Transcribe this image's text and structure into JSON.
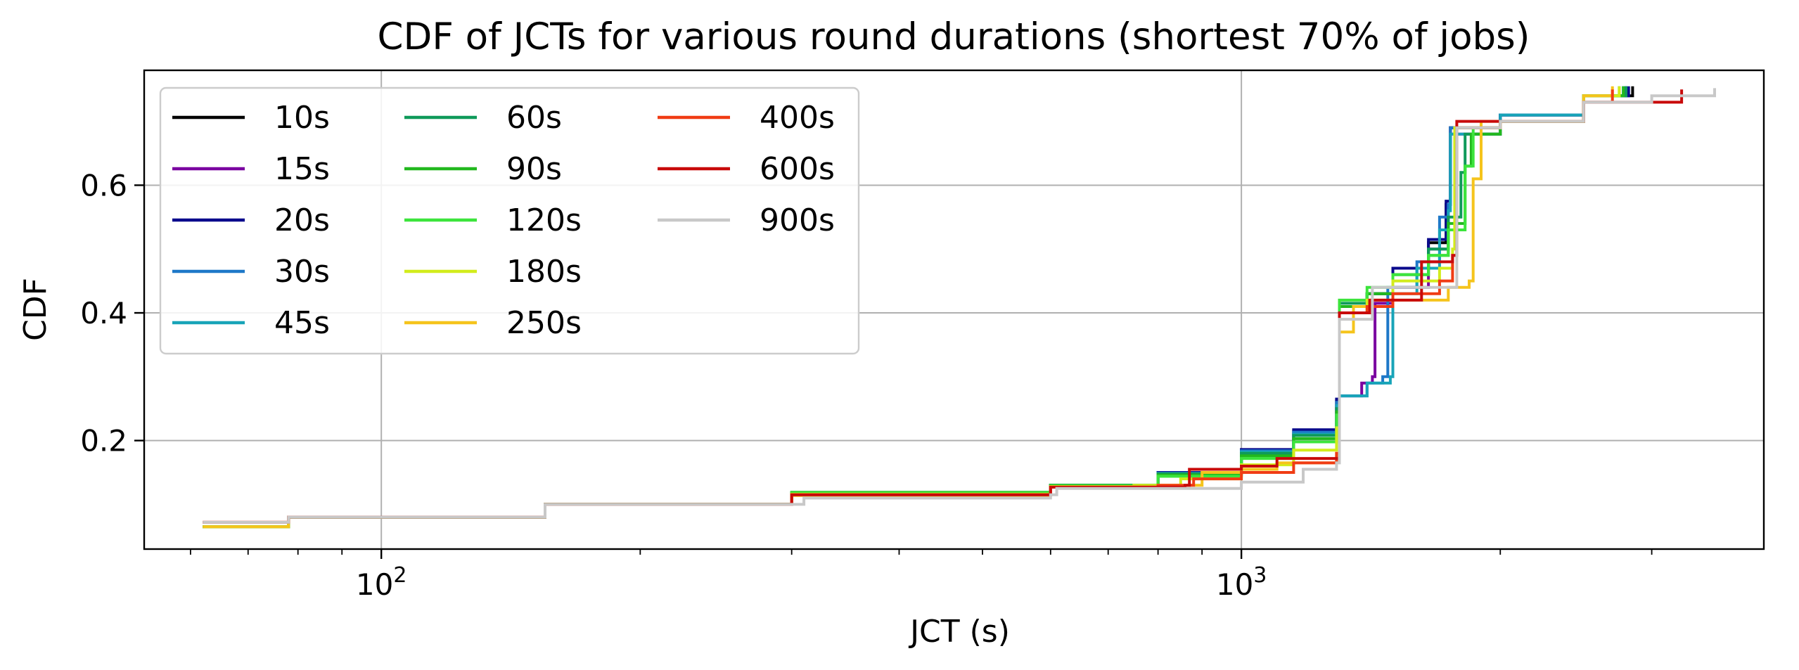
{
  "chart_data": {
    "type": "line",
    "title": "CDF of JCTs for various round durations (shortest 70% of jobs)",
    "xlabel": "JCT (s)",
    "ylabel": "CDF",
    "xscale": "log",
    "xlim": [
      53,
      4050
    ],
    "ylim": [
      0.03,
      0.78
    ],
    "x_major_ticks": [
      {
        "value": 100,
        "base": "10",
        "exp": "2"
      },
      {
        "value": 1000,
        "base": "10",
        "exp": "3"
      }
    ],
    "x_minor_ticks": [
      60,
      70,
      80,
      90,
      200,
      300,
      400,
      500,
      600,
      700,
      800,
      900,
      2000,
      3000
    ],
    "y_ticks": [
      {
        "value": 0.2,
        "label": "0.2"
      },
      {
        "value": 0.4,
        "label": "0.4"
      },
      {
        "value": 0.6,
        "label": "0.6"
      }
    ],
    "grid": true,
    "legend": {
      "placement": "upper-left",
      "columns": 3
    },
    "series": [
      {
        "name": "10s",
        "color": "#000000",
        "points": [
          [
            62,
            0.065
          ],
          [
            72,
            0.065
          ],
          [
            78,
            0.08
          ],
          [
            150,
            0.08
          ],
          [
            155,
            0.1
          ],
          [
            300,
            0.118
          ],
          [
            600,
            0.13
          ],
          [
            800,
            0.15
          ],
          [
            1000,
            0.185
          ],
          [
            1150,
            0.215
          ],
          [
            1290,
            0.262
          ],
          [
            1300,
            0.41
          ],
          [
            1400,
            0.43
          ],
          [
            1500,
            0.47
          ],
          [
            1650,
            0.51
          ],
          [
            1730,
            0.57
          ],
          [
            1750,
            0.69
          ],
          [
            2000,
            0.71
          ],
          [
            2500,
            0.74
          ],
          [
            2850,
            0.755
          ]
        ]
      },
      {
        "name": "15s",
        "color": "#7a00a0",
        "points": [
          [
            62,
            0.065
          ],
          [
            72,
            0.065
          ],
          [
            78,
            0.08
          ],
          [
            150,
            0.08
          ],
          [
            155,
            0.1
          ],
          [
            300,
            0.117
          ],
          [
            600,
            0.13
          ],
          [
            800,
            0.148
          ],
          [
            1000,
            0.182
          ],
          [
            1150,
            0.21
          ],
          [
            1290,
            0.255
          ],
          [
            1300,
            0.27
          ],
          [
            1380,
            0.29
          ],
          [
            1420,
            0.3
          ],
          [
            1430,
            0.415
          ],
          [
            1500,
            0.44
          ],
          [
            1650,
            0.5
          ],
          [
            1740,
            0.57
          ],
          [
            1750,
            0.68
          ],
          [
            2000,
            0.71
          ],
          [
            2500,
            0.74
          ],
          [
            2800,
            0.755
          ]
        ]
      },
      {
        "name": "20s",
        "color": "#0a0a8c",
        "points": [
          [
            62,
            0.065
          ],
          [
            72,
            0.065
          ],
          [
            78,
            0.08
          ],
          [
            150,
            0.08
          ],
          [
            155,
            0.1
          ],
          [
            300,
            0.118
          ],
          [
            600,
            0.13
          ],
          [
            800,
            0.15
          ],
          [
            1000,
            0.186
          ],
          [
            1150,
            0.217
          ],
          [
            1290,
            0.265
          ],
          [
            1300,
            0.41
          ],
          [
            1400,
            0.43
          ],
          [
            1500,
            0.47
          ],
          [
            1650,
            0.515
          ],
          [
            1730,
            0.575
          ],
          [
            1750,
            0.69
          ],
          [
            2000,
            0.71
          ],
          [
            2500,
            0.74
          ],
          [
            2820,
            0.755
          ]
        ]
      },
      {
        "name": "30s",
        "color": "#1e78c8",
        "points": [
          [
            62,
            0.065
          ],
          [
            72,
            0.065
          ],
          [
            78,
            0.08
          ],
          [
            150,
            0.08
          ],
          [
            155,
            0.1
          ],
          [
            300,
            0.118
          ],
          [
            600,
            0.13
          ],
          [
            800,
            0.149
          ],
          [
            1000,
            0.184
          ],
          [
            1150,
            0.213
          ],
          [
            1290,
            0.26
          ],
          [
            1300,
            0.27
          ],
          [
            1400,
            0.29
          ],
          [
            1460,
            0.3
          ],
          [
            1480,
            0.44
          ],
          [
            1600,
            0.48
          ],
          [
            1700,
            0.55
          ],
          [
            1740,
            0.57
          ],
          [
            1750,
            0.69
          ],
          [
            2000,
            0.71
          ],
          [
            2500,
            0.74
          ],
          [
            2800,
            0.755
          ]
        ]
      },
      {
        "name": "45s",
        "color": "#18a4b8",
        "points": [
          [
            62,
            0.065
          ],
          [
            72,
            0.065
          ],
          [
            78,
            0.08
          ],
          [
            150,
            0.08
          ],
          [
            155,
            0.1
          ],
          [
            300,
            0.117
          ],
          [
            600,
            0.13
          ],
          [
            800,
            0.148
          ],
          [
            1000,
            0.182
          ],
          [
            1150,
            0.21
          ],
          [
            1290,
            0.255
          ],
          [
            1300,
            0.27
          ],
          [
            1400,
            0.29
          ],
          [
            1490,
            0.3
          ],
          [
            1500,
            0.43
          ],
          [
            1600,
            0.47
          ],
          [
            1700,
            0.53
          ],
          [
            1740,
            0.56
          ],
          [
            1750,
            0.68
          ],
          [
            2000,
            0.71
          ],
          [
            2500,
            0.74
          ],
          [
            2780,
            0.755
          ]
        ]
      },
      {
        "name": "60s",
        "color": "#0f9a5a",
        "points": [
          [
            62,
            0.065
          ],
          [
            72,
            0.065
          ],
          [
            78,
            0.08
          ],
          [
            150,
            0.08
          ],
          [
            155,
            0.1
          ],
          [
            300,
            0.118
          ],
          [
            600,
            0.13
          ],
          [
            800,
            0.148
          ],
          [
            1000,
            0.18
          ],
          [
            1150,
            0.208
          ],
          [
            1290,
            0.25
          ],
          [
            1300,
            0.415
          ],
          [
            1400,
            0.43
          ],
          [
            1500,
            0.46
          ],
          [
            1650,
            0.5
          ],
          [
            1740,
            0.55
          ],
          [
            1800,
            0.62
          ],
          [
            1820,
            0.68
          ],
          [
            2000,
            0.7
          ],
          [
            2500,
            0.74
          ],
          [
            2800,
            0.755
          ]
        ]
      },
      {
        "name": "90s",
        "color": "#22b81e",
        "points": [
          [
            62,
            0.065
          ],
          [
            72,
            0.065
          ],
          [
            78,
            0.08
          ],
          [
            150,
            0.08
          ],
          [
            155,
            0.1
          ],
          [
            300,
            0.119
          ],
          [
            600,
            0.13
          ],
          [
            800,
            0.146
          ],
          [
            1000,
            0.176
          ],
          [
            1150,
            0.203
          ],
          [
            1290,
            0.245
          ],
          [
            1300,
            0.41
          ],
          [
            1400,
            0.43
          ],
          [
            1500,
            0.46
          ],
          [
            1650,
            0.49
          ],
          [
            1740,
            0.54
          ],
          [
            1820,
            0.63
          ],
          [
            1850,
            0.68
          ],
          [
            2000,
            0.7
          ],
          [
            2500,
            0.74
          ],
          [
            2780,
            0.755
          ]
        ]
      },
      {
        "name": "120s",
        "color": "#3ce43c",
        "points": [
          [
            62,
            0.065
          ],
          [
            72,
            0.065
          ],
          [
            78,
            0.08
          ],
          [
            150,
            0.08
          ],
          [
            155,
            0.1
          ],
          [
            300,
            0.118
          ],
          [
            600,
            0.129
          ],
          [
            800,
            0.144
          ],
          [
            1000,
            0.172
          ],
          [
            1150,
            0.198
          ],
          [
            1290,
            0.24
          ],
          [
            1300,
            0.42
          ],
          [
            1400,
            0.44
          ],
          [
            1500,
            0.46
          ],
          [
            1650,
            0.49
          ],
          [
            1740,
            0.53
          ],
          [
            1820,
            0.63
          ],
          [
            1860,
            0.69
          ],
          [
            2000,
            0.7
          ],
          [
            2500,
            0.74
          ],
          [
            2750,
            0.755
          ]
        ]
      },
      {
        "name": "180s",
        "color": "#d2ec1c",
        "points": [
          [
            62,
            0.065
          ],
          [
            72,
            0.065
          ],
          [
            78,
            0.08
          ],
          [
            150,
            0.08
          ],
          [
            155,
            0.1
          ],
          [
            300,
            0.116
          ],
          [
            600,
            0.128
          ],
          [
            750,
            0.13
          ],
          [
            850,
            0.14
          ],
          [
            1000,
            0.162
          ],
          [
            1150,
            0.185
          ],
          [
            1290,
            0.22
          ],
          [
            1300,
            0.4
          ],
          [
            1400,
            0.42
          ],
          [
            1500,
            0.45
          ],
          [
            1700,
            0.47
          ],
          [
            1760,
            0.5
          ],
          [
            1770,
            0.69
          ],
          [
            2000,
            0.7
          ],
          [
            2500,
            0.74
          ],
          [
            2750,
            0.755
          ]
        ]
      },
      {
        "name": "250s",
        "color": "#f5c41c",
        "points": [
          [
            62,
            0.065
          ],
          [
            72,
            0.065
          ],
          [
            78,
            0.08
          ],
          [
            150,
            0.08
          ],
          [
            155,
            0.1
          ],
          [
            300,
            0.114
          ],
          [
            600,
            0.127
          ],
          [
            800,
            0.13
          ],
          [
            900,
            0.15
          ],
          [
            1000,
            0.155
          ],
          [
            1100,
            0.165
          ],
          [
            1290,
            0.18
          ],
          [
            1300,
            0.37
          ],
          [
            1350,
            0.41
          ],
          [
            1500,
            0.42
          ],
          [
            1700,
            0.42
          ],
          [
            1740,
            0.44
          ],
          [
            1840,
            0.45
          ],
          [
            1860,
            0.61
          ],
          [
            1900,
            0.7
          ],
          [
            2500,
            0.74
          ],
          [
            2700,
            0.755
          ]
        ]
      },
      {
        "name": "400s",
        "color": "#f03c14",
        "points": [
          [
            62,
            0.072
          ],
          [
            72,
            0.072
          ],
          [
            78,
            0.08
          ],
          [
            150,
            0.08
          ],
          [
            155,
            0.1
          ],
          [
            300,
            0.115
          ],
          [
            600,
            0.127
          ],
          [
            800,
            0.13
          ],
          [
            880,
            0.14
          ],
          [
            1000,
            0.15
          ],
          [
            1150,
            0.165
          ],
          [
            1290,
            0.18
          ],
          [
            1300,
            0.4
          ],
          [
            1400,
            0.41
          ],
          [
            1500,
            0.43
          ],
          [
            1700,
            0.45
          ],
          [
            1760,
            0.49
          ],
          [
            1780,
            0.69
          ],
          [
            2000,
            0.7
          ],
          [
            2500,
            0.73
          ],
          [
            2700,
            0.75
          ]
        ]
      },
      {
        "name": "600s",
        "color": "#c80a0a",
        "points": [
          [
            62,
            0.072
          ],
          [
            72,
            0.072
          ],
          [
            78,
            0.08
          ],
          [
            150,
            0.08
          ],
          [
            155,
            0.1
          ],
          [
            300,
            0.115
          ],
          [
            600,
            0.127
          ],
          [
            860,
            0.13
          ],
          [
            870,
            0.155
          ],
          [
            1000,
            0.16
          ],
          [
            1100,
            0.172
          ],
          [
            1290,
            0.172
          ],
          [
            1300,
            0.4
          ],
          [
            1400,
            0.4
          ],
          [
            1410,
            0.42
          ],
          [
            1600,
            0.42
          ],
          [
            1620,
            0.48
          ],
          [
            1760,
            0.49
          ],
          [
            1780,
            0.7
          ],
          [
            2000,
            0.7
          ],
          [
            2500,
            0.73
          ],
          [
            3250,
            0.75
          ]
        ]
      },
      {
        "name": "900s",
        "color": "#c8c8c8",
        "points": [
          [
            62,
            0.072
          ],
          [
            72,
            0.072
          ],
          [
            78,
            0.08
          ],
          [
            150,
            0.08
          ],
          [
            155,
            0.1
          ],
          [
            300,
            0.1
          ],
          [
            310,
            0.11
          ],
          [
            600,
            0.115
          ],
          [
            610,
            0.125
          ],
          [
            1000,
            0.135
          ],
          [
            1170,
            0.135
          ],
          [
            1180,
            0.155
          ],
          [
            1290,
            0.165
          ],
          [
            1300,
            0.39
          ],
          [
            1400,
            0.39
          ],
          [
            1420,
            0.44
          ],
          [
            1760,
            0.44
          ],
          [
            1780,
            0.69
          ],
          [
            2000,
            0.7
          ],
          [
            2500,
            0.73
          ],
          [
            3000,
            0.74
          ],
          [
            3550,
            0.752
          ]
        ]
      }
    ]
  }
}
